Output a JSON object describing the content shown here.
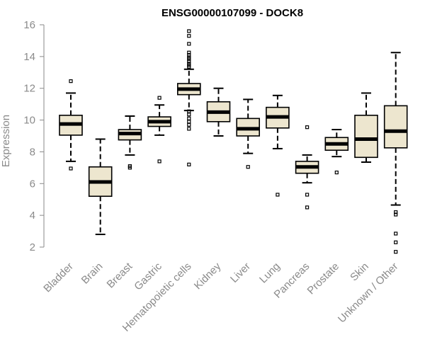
{
  "chart_data": {
    "type": "boxplot",
    "title": "ENSG00000107099 - DOCK8",
    "xlabel": "",
    "ylabel": "Expression",
    "ylim": [
      1.5,
      16.2
    ],
    "yticks": [
      2,
      4,
      6,
      8,
      10,
      12,
      14,
      16
    ],
    "grid": false,
    "colors": {
      "box_fill": "#ede6cf",
      "box_stroke": "#000000",
      "median": "#000000",
      "axis": "#8a8a8a"
    },
    "categories": [
      "Bladder",
      "Brain",
      "Breast",
      "Gastric",
      "Hematopoietic cells",
      "Kidney",
      "Liver",
      "Lung",
      "Pancreas",
      "Prostate",
      "Skin",
      "Unknown / Other"
    ],
    "boxes": [
      {
        "category": "Bladder",
        "whisker_low": 7.4,
        "q1": 9.05,
        "median": 9.75,
        "q3": 10.3,
        "whisker_high": 11.7,
        "outliers": [
          12.45,
          6.95
        ]
      },
      {
        "category": "Brain",
        "whisker_low": 2.8,
        "q1": 5.2,
        "median": 6.1,
        "q3": 7.05,
        "whisker_high": 8.8,
        "outliers": []
      },
      {
        "category": "Breast",
        "whisker_low": 7.8,
        "q1": 8.75,
        "median": 9.15,
        "q3": 9.4,
        "whisker_high": 10.25,
        "outliers": [
          7.1,
          7.0
        ]
      },
      {
        "category": "Gastric",
        "whisker_low": 9.05,
        "q1": 9.6,
        "median": 9.9,
        "q3": 10.2,
        "whisker_high": 10.95,
        "outliers": [
          11.4,
          7.4
        ]
      },
      {
        "category": "Hematopoietic cells",
        "whisker_low": 10.6,
        "q1": 11.6,
        "median": 11.95,
        "q3": 12.3,
        "whisker_high": 13.2,
        "outliers": [
          15.6,
          15.3,
          14.8,
          14.25,
          14.1,
          13.95,
          13.85,
          13.7,
          13.55,
          13.45,
          13.35,
          10.55,
          10.35,
          10.1,
          9.9,
          9.7,
          9.45,
          7.2
        ]
      },
      {
        "category": "Kidney",
        "whisker_low": 9.0,
        "q1": 9.9,
        "median": 10.5,
        "q3": 11.15,
        "whisker_high": 12.0,
        "outliers": []
      },
      {
        "category": "Liver",
        "whisker_low": 7.9,
        "q1": 9.0,
        "median": 9.45,
        "q3": 10.1,
        "whisker_high": 11.3,
        "outliers": [
          7.05
        ]
      },
      {
        "category": "Lung",
        "whisker_low": 8.2,
        "q1": 9.5,
        "median": 10.2,
        "q3": 10.8,
        "whisker_high": 11.55,
        "outliers": [
          5.3
        ]
      },
      {
        "category": "Pancreas",
        "whisker_low": 6.05,
        "q1": 6.65,
        "median": 7.05,
        "q3": 7.4,
        "whisker_high": 7.8,
        "outliers": [
          9.55,
          5.3,
          4.5
        ]
      },
      {
        "category": "Prostate",
        "whisker_low": 7.7,
        "q1": 8.1,
        "median": 8.5,
        "q3": 8.9,
        "whisker_high": 9.4,
        "outliers": [
          6.7
        ]
      },
      {
        "category": "Skin",
        "whisker_low": 7.35,
        "q1": 7.65,
        "median": 8.8,
        "q3": 10.3,
        "whisker_high": 11.7,
        "outliers": []
      },
      {
        "category": "Unknown / Other",
        "whisker_low": 4.65,
        "q1": 8.25,
        "median": 9.3,
        "q3": 10.9,
        "whisker_high": 14.25,
        "outliers": [
          4.2,
          4.05,
          2.85,
          2.3,
          1.7
        ]
      }
    ]
  }
}
